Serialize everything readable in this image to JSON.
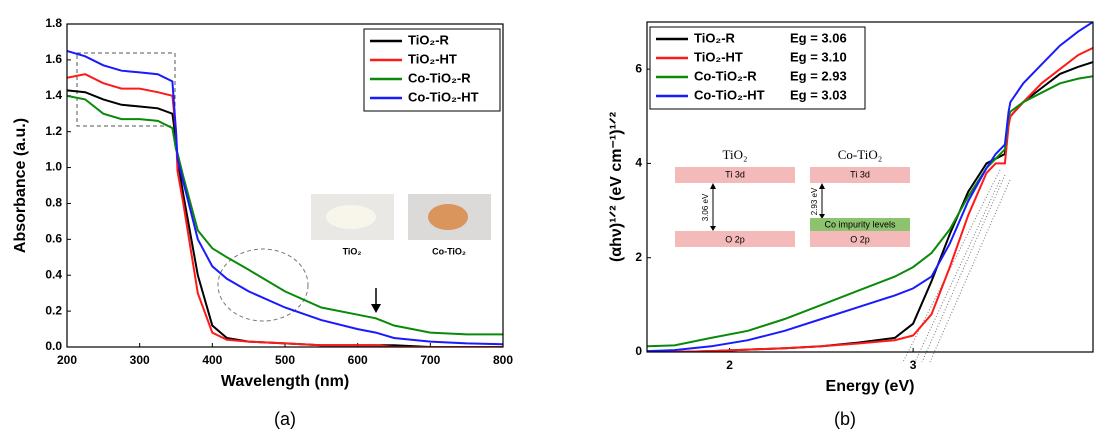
{
  "chart_data": [
    {
      "type": "line",
      "caption": "(a)",
      "x_label": "Wavelength (nm)",
      "y_label": "Absorbance (a.u.)",
      "x": [
        200,
        225,
        250,
        275,
        300,
        325,
        345,
        350,
        352,
        360,
        380,
        400,
        420,
        450,
        500,
        550,
        600,
        625,
        650,
        700,
        750,
        800
      ],
      "series": [
        {
          "name": "TiO₂-R",
          "color": "#000000",
          "values": [
            1.43,
            1.42,
            1.38,
            1.35,
            1.34,
            1.33,
            1.3,
            1.15,
            1.05,
            0.85,
            0.4,
            0.12,
            0.05,
            0.03,
            0.02,
            0.01,
            0.01,
            0.01,
            0.01,
            0.0,
            0.0,
            0.0
          ]
        },
        {
          "name": "TiO₂-HT",
          "color": "#ff1a1a",
          "values": [
            1.5,
            1.52,
            1.47,
            1.44,
            1.44,
            1.42,
            1.4,
            1.2,
            0.98,
            0.8,
            0.3,
            0.08,
            0.04,
            0.03,
            0.02,
            0.01,
            0.01,
            0.01,
            0.0,
            0.0,
            0.0,
            0.0
          ]
        },
        {
          "name": "Co-TiO₂-R",
          "color": "#0a8a0a",
          "values": [
            1.4,
            1.38,
            1.3,
            1.27,
            1.27,
            1.26,
            1.22,
            1.1,
            1.08,
            0.95,
            0.65,
            0.55,
            0.5,
            0.43,
            0.31,
            0.22,
            0.18,
            0.16,
            0.12,
            0.08,
            0.07,
            0.07
          ]
        },
        {
          "name": "Co-TiO₂-HT",
          "color": "#1a1aff",
          "values": [
            1.65,
            1.62,
            1.57,
            1.54,
            1.53,
            1.52,
            1.48,
            1.2,
            1.05,
            0.92,
            0.6,
            0.45,
            0.38,
            0.31,
            0.22,
            0.15,
            0.1,
            0.08,
            0.05,
            0.03,
            0.02,
            0.015
          ]
        }
      ],
      "xlim": [
        200,
        800
      ],
      "xticks": [
        200,
        300,
        400,
        500,
        600,
        700,
        800
      ],
      "ylim": [
        0,
        1.8
      ],
      "yticks": [
        {
          "value": 0,
          "label": "0.0"
        },
        {
          "value": 0.2,
          "label": "0.2"
        },
        {
          "value": 0.4,
          "label": "0.4"
        },
        {
          "value": 0.6,
          "label": "0.6"
        },
        {
          "value": 0.8,
          "label": "0.8"
        },
        {
          "value": 1,
          "label": "1.0"
        },
        {
          "value": 1.2,
          "label": "1.2"
        },
        {
          "value": 1.4,
          "label": "1.4"
        },
        {
          "value": 1.6,
          "label": "1.6"
        },
        {
          "value": 1.8,
          "label": "1.8"
        }
      ],
      "legend": "top right",
      "inset_labels": [
        "TiO₂",
        "Co-TiO₂"
      ]
    },
    {
      "type": "line",
      "caption": "(b)",
      "x_label": "Energy (eV)",
      "y_label": "(αhν)¹ᐟ² (eV cm⁻¹)¹ᐟ²",
      "x": [
        1.55,
        1.7,
        1.9,
        2.1,
        2.3,
        2.5,
        2.7,
        2.9,
        3.0,
        3.1,
        3.2,
        3.3,
        3.4,
        3.45,
        3.5,
        3.52,
        3.53,
        3.6,
        3.7,
        3.8,
        3.9,
        3.98
      ],
      "series": [
        {
          "name": "TiO₂-R",
          "eg_label": "Eg = 3.06",
          "color": "#000000",
          "values": [
            0,
            0,
            0.02,
            0.05,
            0.08,
            0.12,
            0.2,
            0.3,
            0.6,
            1.5,
            2.5,
            3.4,
            4.0,
            4.1,
            4.2,
            4.9,
            5.0,
            5.3,
            5.6,
            5.9,
            6.05,
            6.15
          ]
        },
        {
          "name": "TiO₂-HT",
          "eg_label": "Eg = 3.10",
          "color": "#ff1a1a",
          "values": [
            0,
            0,
            0.02,
            0.05,
            0.08,
            0.12,
            0.18,
            0.25,
            0.35,
            0.8,
            1.8,
            2.9,
            3.8,
            4.0,
            4.0,
            4.8,
            5.0,
            5.3,
            5.7,
            6.0,
            6.3,
            6.45
          ]
        },
        {
          "name": "Co-TiO₂-R",
          "eg_label": "Eg = 2.93",
          "color": "#0a8a0a",
          "values": [
            0.12,
            0.14,
            0.3,
            0.45,
            0.7,
            1.0,
            1.3,
            1.6,
            1.8,
            2.1,
            2.6,
            3.3,
            3.9,
            4.1,
            4.3,
            5.0,
            5.1,
            5.3,
            5.5,
            5.7,
            5.8,
            5.85
          ]
        },
        {
          "name": "Co-TiO₂-HT",
          "eg_label": "Eg = 3.03",
          "color": "#1a1aff",
          "values": [
            0.02,
            0.04,
            0.12,
            0.25,
            0.45,
            0.7,
            0.95,
            1.2,
            1.35,
            1.6,
            2.3,
            3.2,
            3.9,
            4.2,
            4.4,
            5.1,
            5.3,
            5.7,
            6.1,
            6.5,
            6.8,
            7.0
          ]
        }
      ],
      "xlim": [
        1.55,
        3.98
      ],
      "xticks": [
        2,
        3
      ],
      "ylim": [
        0,
        7
      ],
      "yticks": [
        0,
        2,
        4,
        6
      ],
      "legend": "top left",
      "inset": {
        "titles": [
          "TiO₂",
          "Co-TiO₂"
        ],
        "top_level": "Ti 3d",
        "bottom_level": "O 2p",
        "impurity_level": "Co impurity levels",
        "gaps": [
          "3.06 eV",
          "2.93 eV"
        ]
      }
    }
  ]
}
